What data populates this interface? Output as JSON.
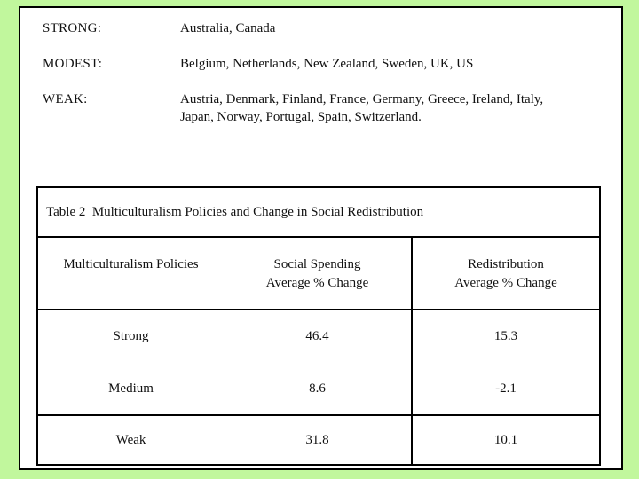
{
  "slide": {
    "background_color": "#c1f79d",
    "panel_background": "#ffffff",
    "border_color": "#000000"
  },
  "classification": {
    "rows": [
      {
        "label": "STRONG:",
        "countries": "Australia, Canada"
      },
      {
        "label": "MODEST:",
        "countries": "Belgium, Netherlands, New Zealand, Sweden, UK, US"
      },
      {
        "label": "WEAK:",
        "countries": "Austria, Denmark, Finland, France, Germany, Greece, Ireland, Italy,\nJapan, Norway, Portugal, Spain, Switzerland."
      }
    ]
  },
  "table": {
    "title": "Table 2  Multiculturalism Policies and Change in Social Redistribution",
    "headers": {
      "policies": "Multiculturalism Policies",
      "social_spending": "Social Spending\nAverage % Change",
      "redistribution": "Redistribution\nAverage % Change"
    },
    "rows": [
      {
        "policy": "Strong",
        "social_spending": "46.4",
        "redistribution": "15.3"
      },
      {
        "policy": "Medium",
        "social_spending": "8.6",
        "redistribution": "-2.1"
      },
      {
        "policy": "Weak",
        "social_spending": "31.8",
        "redistribution": "10.1"
      }
    ]
  }
}
